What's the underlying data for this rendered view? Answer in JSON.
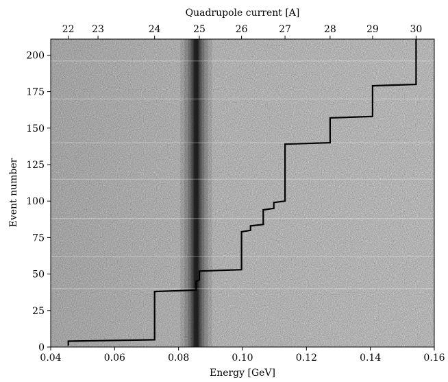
{
  "chart_data": {
    "type": "line",
    "background": "heatmap",
    "xlabel": "Energy [GeV]",
    "ylabel": "Event number",
    "top_axis_label": "Quadrupole current [A]",
    "xlim": [
      0.04,
      0.16
    ],
    "ylim": [
      0,
      211
    ],
    "x_ticks": [
      0.04,
      0.06,
      0.08,
      0.1,
      0.12,
      0.14,
      0.16
    ],
    "x_tick_labels": [
      "0.04",
      "0.06",
      "0.08",
      "0.10",
      "0.12",
      "0.14",
      "0.16"
    ],
    "y_ticks": [
      0,
      25,
      50,
      75,
      100,
      125,
      150,
      175,
      200
    ],
    "y_tick_labels": [
      "0",
      "25",
      "50",
      "75",
      "100",
      "125",
      "150",
      "175",
      "200"
    ],
    "top_ticks": [
      {
        "energy": 0.0455,
        "label": "22"
      },
      {
        "energy": 0.0548,
        "label": "23"
      },
      {
        "energy": 0.0725,
        "label": "24"
      },
      {
        "energy": 0.0865,
        "label": "25"
      },
      {
        "energy": 0.0997,
        "label": "26"
      },
      {
        "energy": 0.1133,
        "label": "27"
      },
      {
        "energy": 0.1274,
        "label": "28"
      },
      {
        "energy": 0.1407,
        "label": "29"
      },
      {
        "energy": 0.1543,
        "label": "30"
      }
    ],
    "grid": false,
    "band_center_energy": 0.0855,
    "series": [
      {
        "color": "#000000",
        "points": [
          [
            0.0455,
            1
          ],
          [
            0.0455,
            4
          ],
          [
            0.0725,
            5
          ],
          [
            0.0725,
            38
          ],
          [
            0.0855,
            39
          ],
          [
            0.0855,
            45
          ],
          [
            0.0865,
            46
          ],
          [
            0.0865,
            52
          ],
          [
            0.0997,
            53
          ],
          [
            0.0997,
            79
          ],
          [
            0.1025,
            80
          ],
          [
            0.1025,
            83
          ],
          [
            0.1065,
            84
          ],
          [
            0.1065,
            94
          ],
          [
            0.1098,
            95
          ],
          [
            0.1098,
            99
          ],
          [
            0.1133,
            100
          ],
          [
            0.1133,
            139
          ],
          [
            0.1274,
            140
          ],
          [
            0.1274,
            157
          ],
          [
            0.1407,
            158
          ],
          [
            0.1407,
            179
          ],
          [
            0.1543,
            180
          ],
          [
            0.1543,
            211
          ]
        ]
      }
    ]
  }
}
